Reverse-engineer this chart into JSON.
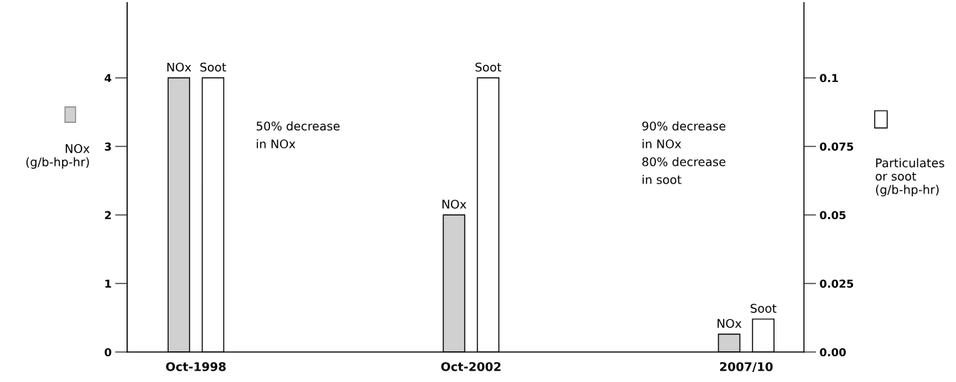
{
  "chart_data": {
    "type": "bar",
    "categories": [
      "Oct-1998",
      "Oct-2002",
      "2007/10"
    ],
    "series": [
      {
        "name": "NOx",
        "color": "#d0d0d0",
        "values": [
          4,
          2,
          0.26
        ]
      },
      {
        "name": "Soot",
        "color": "#ffffff",
        "values": [
          0.1,
          0.1,
          0.012
        ],
        "axis": "y2"
      }
    ],
    "ylabel": "NOx\n(g/b-hp-hr)",
    "y2label": "Particulates\nor soot\n(g/b-hp-hr)",
    "ylim": [
      0,
      5.1
    ],
    "yticks": [
      0,
      1,
      2,
      3,
      4
    ],
    "y2lim": [
      0,
      0.1275
    ],
    "y2ticks": [
      {
        "value": 0,
        "label": "0.00"
      },
      0.025,
      0.05,
      0.075,
      0.1
    ],
    "annotations": [
      "50% decrease\nin NOx",
      "90% decrease\nin NOx\n80% decrease\nin soot"
    ],
    "grid": false,
    "legend": false
  }
}
